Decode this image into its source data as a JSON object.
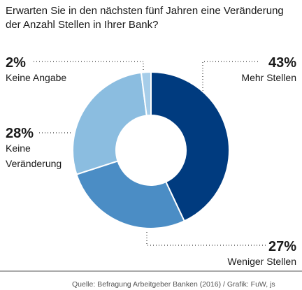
{
  "chart_data": {
    "type": "donut",
    "title": [
      "Erwarten Sie in den nächsten fünf Jahren eine Veränderung",
      "der Anzahl Stellen in Ihrer Bank?"
    ],
    "categories": [
      "Mehr Stellen",
      "Weniger Stellen",
      [
        "Keine",
        "Veränderung"
      ],
      "Keine Angabe"
    ],
    "values": [
      43,
      27,
      28,
      2
    ],
    "value_labels": [
      "43%",
      "27%",
      "28%",
      "2%"
    ],
    "colors": [
      "#003b7f",
      "#4b8dc5",
      "#8bbde0",
      "#a6cde9"
    ],
    "source": "Quelle: Befragung Arbeitgeber Banken (2016) / Grafik: FuW, js"
  }
}
